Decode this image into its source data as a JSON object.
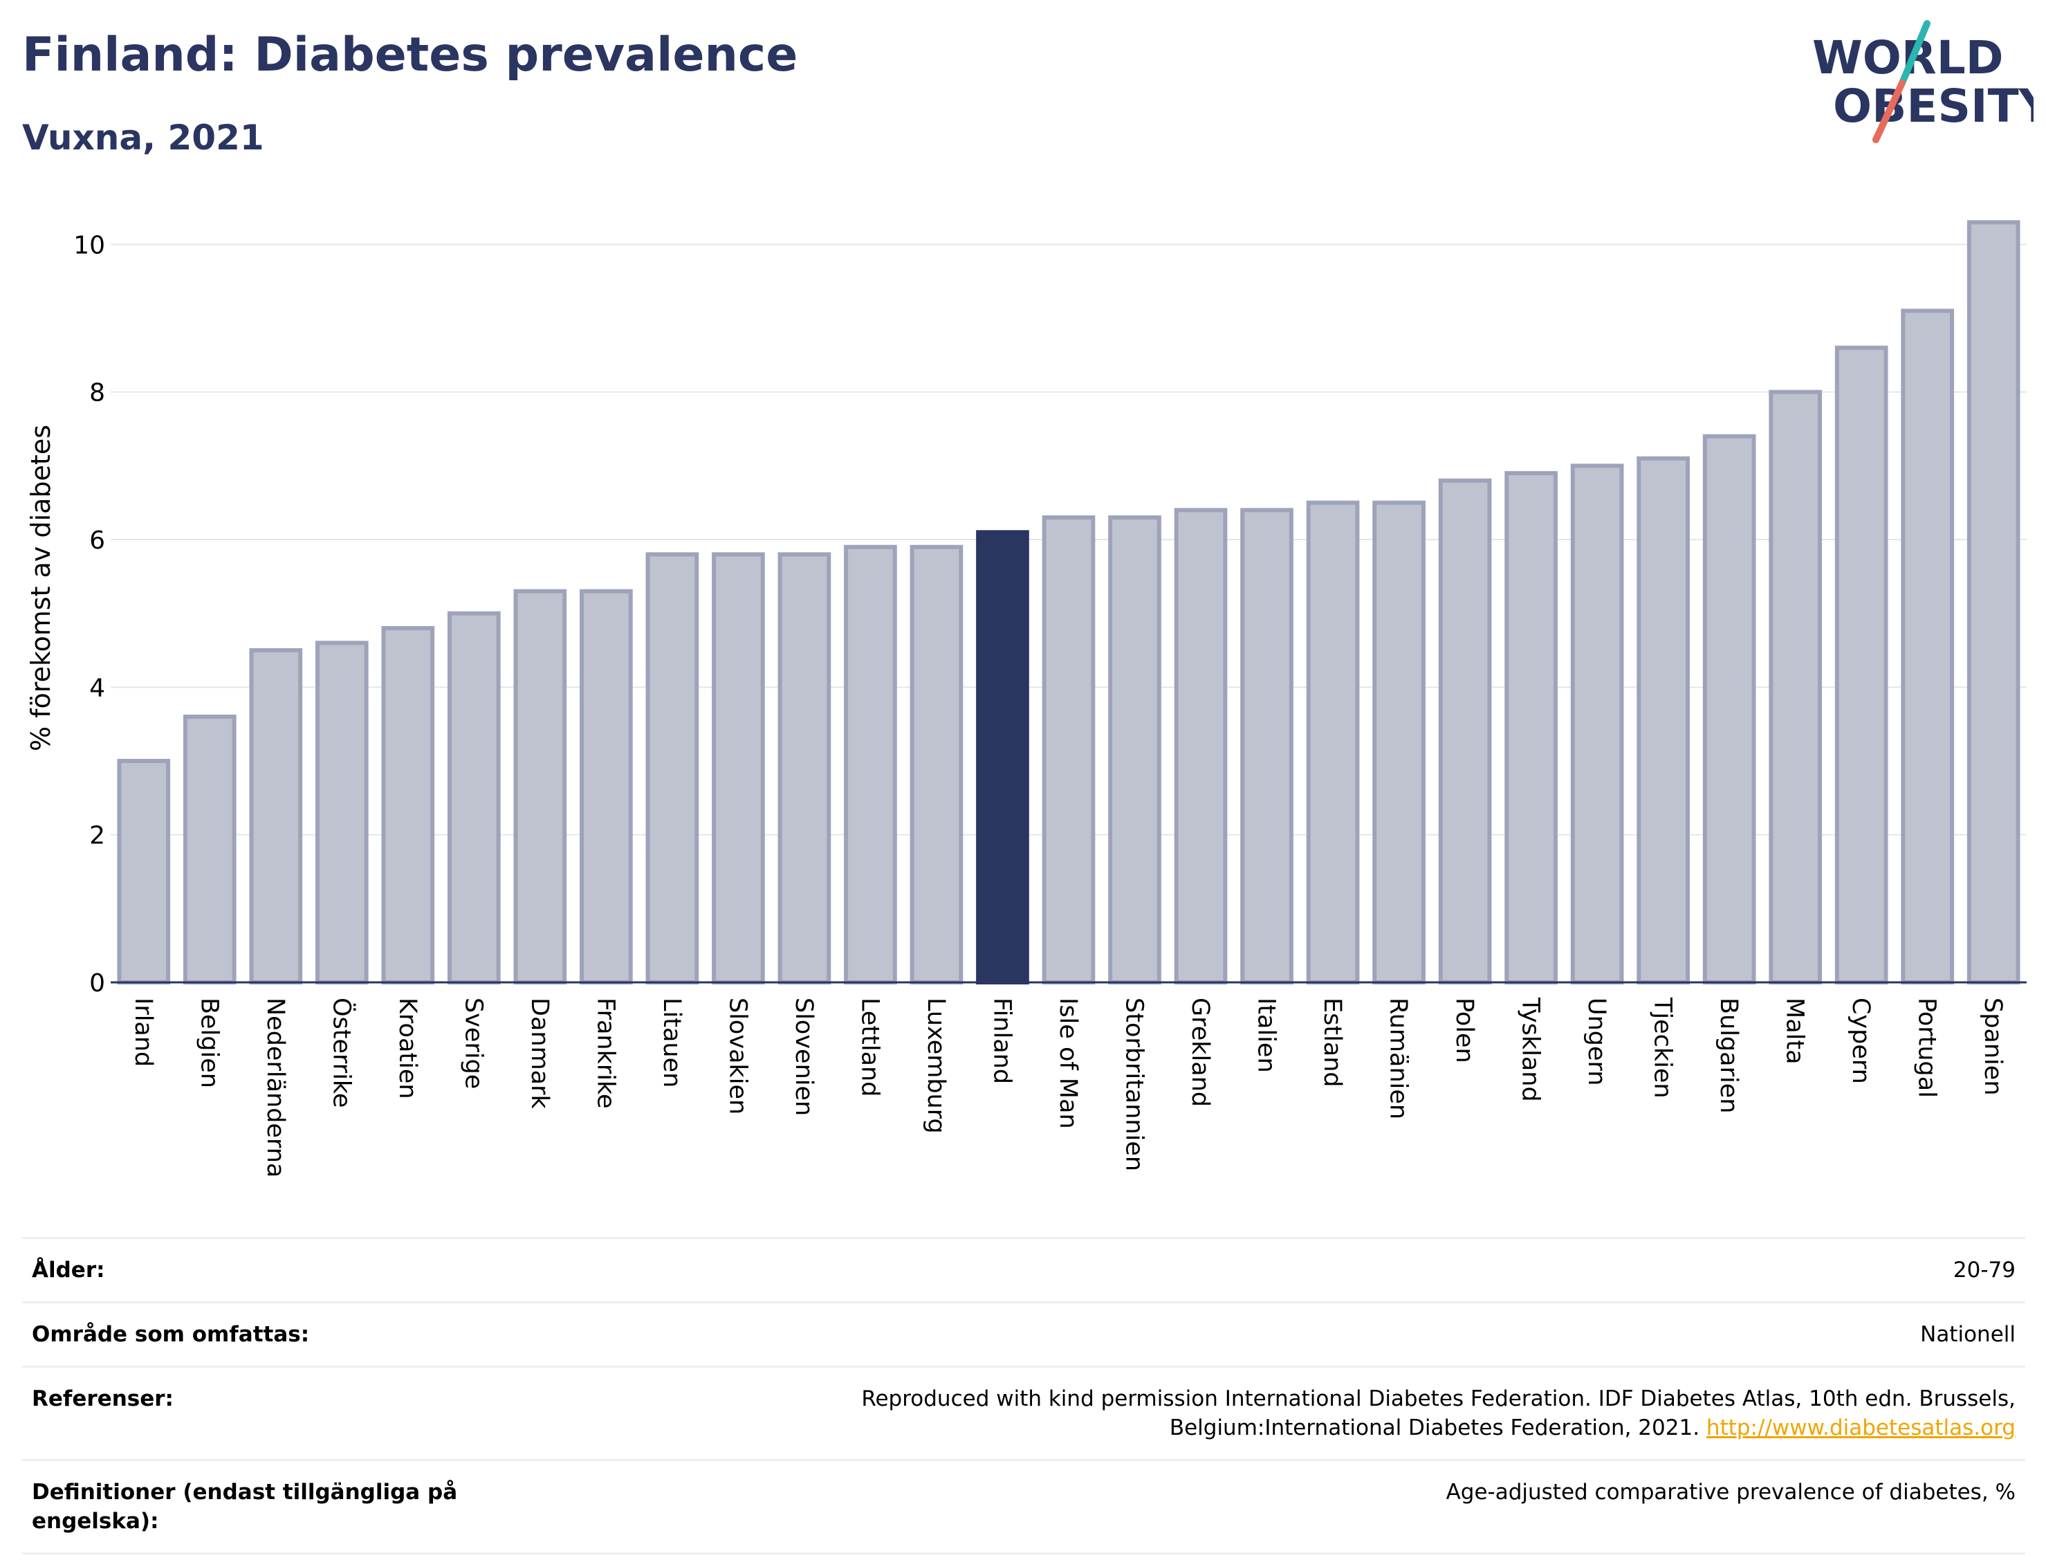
{
  "header": {
    "title": "Finland: Diabetes prevalence",
    "subtitle": "Vuxna, 2021",
    "logo_line1": "WORLD",
    "logo_line2": "OBESITY"
  },
  "colors": {
    "bar_default": "#bfc2cf",
    "bar_stroke": "#9ea3ba",
    "bar_highlight": "#2a3561",
    "grid": "#e4e6ec",
    "text": "#2a3561"
  },
  "chart_data": {
    "type": "bar",
    "ylabel": "% förekomst av diabetes",
    "ylim": [
      0,
      10.5
    ],
    "yticks": [
      0,
      2,
      4,
      6,
      8,
      10
    ],
    "grid": true,
    "highlight": "Finland",
    "categories": [
      "Irland",
      "Belgien",
      "Nederländerna",
      "Österrike",
      "Kroatien",
      "Sverige",
      "Danmark",
      "Frankrike",
      "Litauen",
      "Slovakien",
      "Slovenien",
      "Lettland",
      "Luxemburg",
      "Finland",
      "Isle of Man",
      "Storbritannien",
      "Grekland",
      "Italien",
      "Estland",
      "Rumänien",
      "Polen",
      "Tyskland",
      "Ungern",
      "Tjeckien",
      "Bulgarien",
      "Malta",
      "Cypern",
      "Portugal",
      "Spanien"
    ],
    "values": [
      3.0,
      3.6,
      4.5,
      4.6,
      4.8,
      5.0,
      5.3,
      5.3,
      5.8,
      5.8,
      5.8,
      5.9,
      5.9,
      6.1,
      6.3,
      6.3,
      6.4,
      6.4,
      6.5,
      6.5,
      6.8,
      6.9,
      7.0,
      7.1,
      7.4,
      8.0,
      8.6,
      9.1,
      10.3
    ]
  },
  "info": {
    "rows": [
      {
        "label": "Ålder:",
        "value": "20-79"
      },
      {
        "label": "Område som omfattas:",
        "value": "Nationell"
      },
      {
        "label": "Referenser:",
        "value": "Reproduced with kind permission International Diabetes Federation.  IDF Diabetes Atlas, 10th edn. Brussels, Belgium:International Diabetes Federation, 2021.",
        "link": "http://www.diabetesatlas.org"
      },
      {
        "label": "Definitioner (endast tillgängliga på engelska):",
        "value": "Age-adjusted comparative prevalence of diabetes, %"
      }
    ]
  }
}
